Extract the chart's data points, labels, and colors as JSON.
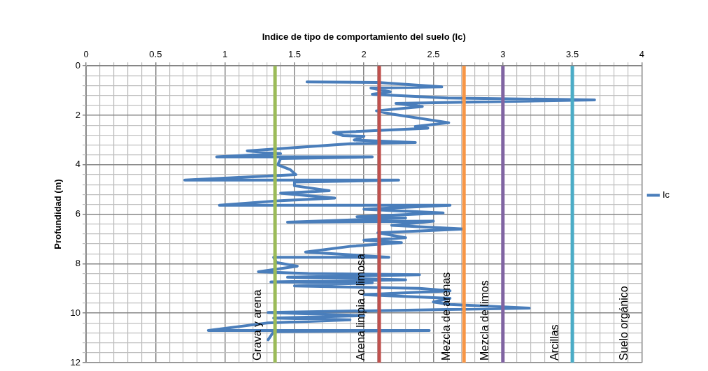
{
  "chart_data": {
    "type": "line",
    "title": "Indice de tipo de comportamiento del suelo (Ic)",
    "ylabel": "Profundidad (m)",
    "xlim": [
      0,
      4
    ],
    "xticks": [
      0,
      {
        "value": 0.1,
        "label": null
      },
      {
        "value": 0.2,
        "label": null
      },
      {
        "value": 0.3,
        "label": null
      },
      {
        "value": 0.4,
        "label": null
      },
      0.5,
      {
        "value": 0.6,
        "label": null
      },
      {
        "value": 0.7,
        "label": null
      },
      {
        "value": 0.8,
        "label": null
      },
      {
        "value": 0.9,
        "label": null
      },
      1,
      {
        "value": 1.1,
        "label": null
      },
      {
        "value": 1.2,
        "label": null
      },
      {
        "value": 1.3,
        "label": null
      },
      {
        "value": 1.4,
        "label": null
      },
      1.5,
      {
        "value": 1.6,
        "label": null
      },
      {
        "value": 1.7,
        "label": null
      },
      {
        "value": 1.8,
        "label": null
      },
      {
        "value": 1.9,
        "label": null
      },
      2,
      {
        "value": 2.1,
        "label": null
      },
      {
        "value": 2.2,
        "label": null
      },
      {
        "value": 2.3,
        "label": null
      },
      {
        "value": 2.4,
        "label": null
      },
      2.5,
      {
        "value": 2.6,
        "label": null
      },
      {
        "value": 2.7,
        "label": null
      },
      {
        "value": 2.8,
        "label": null
      },
      {
        "value": 2.9,
        "label": null
      },
      3,
      {
        "value": 3.1,
        "label": null
      },
      {
        "value": 3.2,
        "label": null
      },
      {
        "value": 3.3,
        "label": null
      },
      {
        "value": 3.4,
        "label": null
      },
      3.5,
      {
        "value": 3.6,
        "label": null
      },
      {
        "value": 3.7,
        "label": null
      },
      {
        "value": 3.8,
        "label": null
      },
      {
        "value": 3.9,
        "label": null
      },
      4
    ],
    "ylim": [
      12,
      0
    ],
    "yticks": [
      0,
      {
        "value": 0.4,
        "label": null
      },
      {
        "value": 0.8,
        "label": null
      },
      {
        "value": 1.2,
        "label": null
      },
      {
        "value": 1.6,
        "label": null
      },
      2,
      {
        "value": 2.4,
        "label": null
      },
      {
        "value": 2.8,
        "label": null
      },
      {
        "value": 3.2,
        "label": null
      },
      {
        "value": 3.6,
        "label": null
      },
      4,
      {
        "value": 4.4,
        "label": null
      },
      {
        "value": 4.8,
        "label": null
      },
      {
        "value": 5.2,
        "label": null
      },
      {
        "value": 5.6,
        "label": null
      },
      6,
      {
        "value": 6.4,
        "label": null
      },
      {
        "value": 6.8,
        "label": null
      },
      {
        "value": 7.2,
        "label": null
      },
      {
        "value": 7.6,
        "label": null
      },
      8,
      {
        "value": 8.4,
        "label": null
      },
      {
        "value": 8.8,
        "label": null
      },
      {
        "value": 9.2,
        "label": null
      },
      {
        "value": 9.6,
        "label": null
      },
      10,
      {
        "value": 10.4,
        "label": null
      },
      {
        "value": 10.8,
        "label": null
      },
      {
        "value": 11.2,
        "label": null
      },
      {
        "value": 11.6,
        "label": null
      },
      12
    ],
    "grid": true,
    "legend": "right",
    "marker": "none",
    "series": [
      {
        "name": "Ic",
        "color": "#4a7ebb",
        "x": [
          1.59,
          2.1,
          2.56,
          2.05,
          2.19,
          2.06,
          2.6,
          3.66,
          2.23,
          2.42,
          2.09,
          2.2,
          2.61,
          2.37,
          2.46,
          1.78,
          1.85,
          2.0,
          1.93,
          2.37,
          1.9,
          1.16,
          1.4,
          0.94,
          2.06,
          1.4,
          1.38,
          1.47,
          1.51,
          0.71,
          2.25,
          1.5,
          1.5,
          1.75,
          1.4,
          1.79,
          1.4,
          0.96,
          2.62,
          2.0,
          2.57,
          1.95,
          2.3,
          1.45,
          2.5,
          2.2,
          2.72,
          2.1,
          2.3,
          2.0,
          2.27,
          1.9,
          1.58,
          2.18,
          1.35,
          1.37,
          1.52,
          1.24,
          1.6,
          2.4,
          1.45,
          2.3,
          1.33,
          2.06,
          1.5,
          2.4,
          2.62,
          2.0,
          2.62,
          2.5,
          2.62,
          3.19,
          1.31,
          2.0,
          1.35,
          1.9,
          1.3,
          0.88,
          2.47,
          1.35,
          1.31
        ],
        "values": [
          0.65,
          0.67,
          0.85,
          0.9,
          1.05,
          1.15,
          1.3,
          1.38,
          1.52,
          1.65,
          1.82,
          1.95,
          2.3,
          2.45,
          2.52,
          2.7,
          2.82,
          2.85,
          3.0,
          3.1,
          3.15,
          3.44,
          3.55,
          3.68,
          3.68,
          3.75,
          4.0,
          4.2,
          4.4,
          4.62,
          4.62,
          4.7,
          4.85,
          5.05,
          5.15,
          5.35,
          5.45,
          5.64,
          5.64,
          5.8,
          5.95,
          6.1,
          6.15,
          6.32,
          6.28,
          6.45,
          6.6,
          6.75,
          6.95,
          7.05,
          7.15,
          7.3,
          7.53,
          7.74,
          7.74,
          7.95,
          8.1,
          8.33,
          8.4,
          8.45,
          8.55,
          8.65,
          8.74,
          8.77,
          8.9,
          9.0,
          9.1,
          9.25,
          9.4,
          9.55,
          9.65,
          9.8,
          9.97,
          10.1,
          10.2,
          10.27,
          10.4,
          10.7,
          10.7,
          10.75,
          11.08
        ]
      }
    ],
    "ref_lines": [
      {
        "axis": "x",
        "value": 1.36,
        "color": "#9bbb59"
      },
      {
        "axis": "x",
        "value": 2.11,
        "color": "#c0504d"
      },
      {
        "axis": "x",
        "value": 2.72,
        "color": "#f79646"
      },
      {
        "axis": "x",
        "value": 3.0,
        "color": "#8064a2"
      },
      {
        "axis": "x",
        "value": 3.5,
        "color": "#4bacc6"
      }
    ],
    "annotations": [
      "Grava y arena",
      "Arena limpia o limosa",
      "Mezcla de arenas",
      "Mezcla de limos",
      "Arcillas",
      "Suelo orgánico"
    ]
  }
}
